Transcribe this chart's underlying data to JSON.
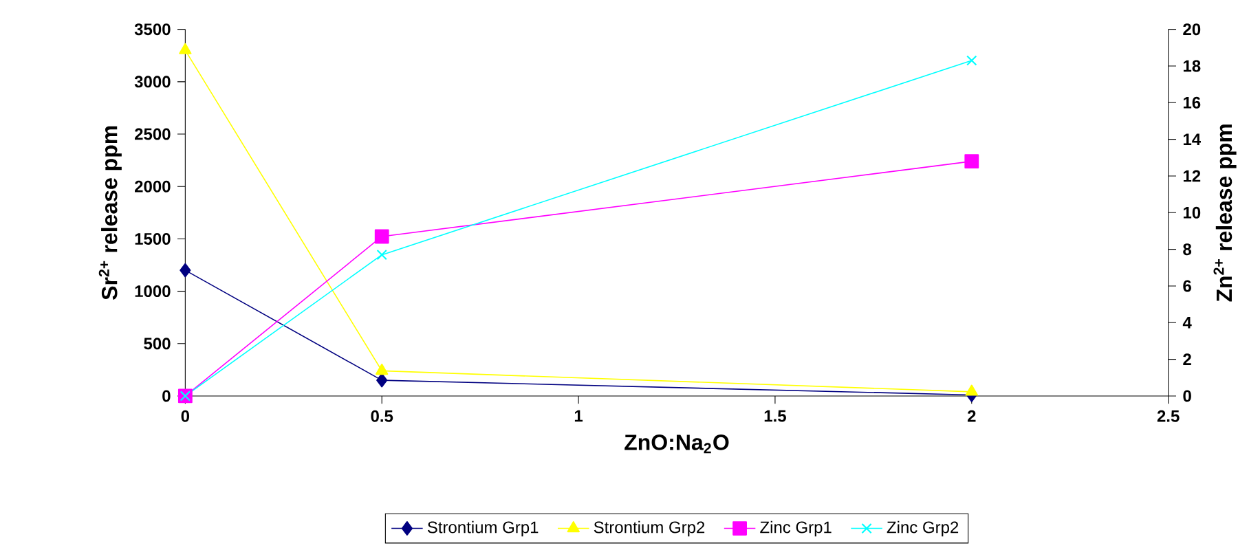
{
  "chart_data": {
    "type": "line",
    "xlabel": "ZnO:Na$_{2}$O",
    "ylabel": "Sr$^{2+}$ release ppm",
    "y2label": "Zn$^{2+}$ release ppm",
    "x": [
      0,
      0.5,
      2
    ],
    "series": [
      {
        "name": "Strontium Grp1",
        "color": "#000080",
        "marker": "diamond",
        "values": [
          1200,
          150,
          10
        ]
      },
      {
        "name": "Strontium Grp2",
        "color": "#ffff00",
        "marker": "triangle",
        "values": [
          3300,
          240,
          40
        ]
      },
      {
        "name": "Zinc Grp1",
        "color": "#ff00ff",
        "marker": "square",
        "axis": "y2",
        "values": [
          0,
          8.7,
          12.8
        ]
      },
      {
        "name": "Zinc Grp2",
        "color": "#00ffff",
        "marker": "cross",
        "axis": "y2",
        "values": [
          0,
          7.7,
          18.3
        ]
      }
    ],
    "xlim": [
      0,
      2.5
    ],
    "xticks": [
      0,
      0.5,
      1,
      1.5,
      2,
      2.5
    ],
    "ylim": [
      0,
      3500
    ],
    "yticks": [
      0,
      500,
      1000,
      1500,
      2000,
      2500,
      3000,
      3500
    ],
    "y2lim": [
      0,
      20
    ],
    "y2ticks": [
      0,
      2,
      4,
      6,
      8,
      10,
      12,
      14,
      16,
      18,
      20
    ],
    "grid": false,
    "legend": "bottom",
    "line_style": "solid"
  }
}
